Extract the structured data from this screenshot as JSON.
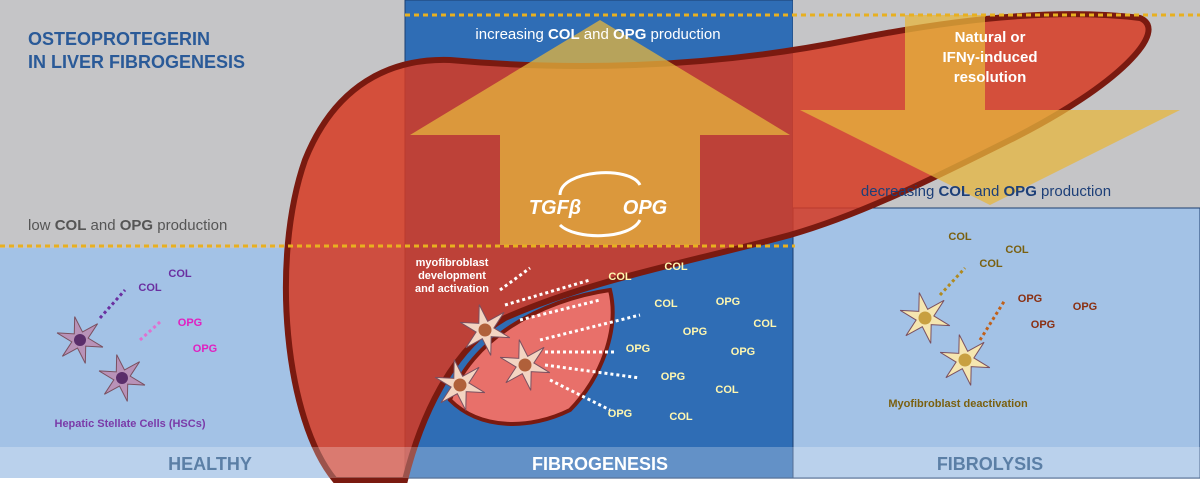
{
  "title": [
    "OSTEOPROTEGERIN",
    "IN LIVER FIBROGENESIS"
  ],
  "top_caption": [
    "increasing ",
    "COL",
    " and ",
    "OPG",
    " production"
  ],
  "resolution": [
    "Natural or",
    "IFNγ-induced",
    "resolution"
  ],
  "right_caption": [
    "decreasing ",
    "COL",
    " and ",
    "OPG",
    " production"
  ],
  "left_caption": [
    "low ",
    "COL",
    " and ",
    "OPG",
    " production"
  ],
  "cycle": [
    "TGFβ",
    "OPG"
  ],
  "myofibroblast_note": [
    "myofibroblast",
    "development",
    "and activation"
  ],
  "healthy": {
    "labels": [
      "COL",
      "COL",
      "OPG",
      "OPG"
    ],
    "cells_label": "Hepatic Stellate Cells (HSCs)"
  },
  "fibrogenesis": {
    "labels": [
      "COL",
      "COL",
      "COL",
      "OPG",
      "COL",
      "OPG",
      "OPG",
      "OPG",
      "OPG",
      "COL",
      "OPG",
      "COL"
    ]
  },
  "fibrolysis": {
    "labels": [
      "COL",
      "COL",
      "COL",
      "OPG",
      "OPG",
      "OPG"
    ],
    "cells_label": "Myofibroblast  deactivation"
  },
  "stages": [
    "HEALTHY",
    "FIBROGENESIS",
    "FIBROLYSIS"
  ]
}
